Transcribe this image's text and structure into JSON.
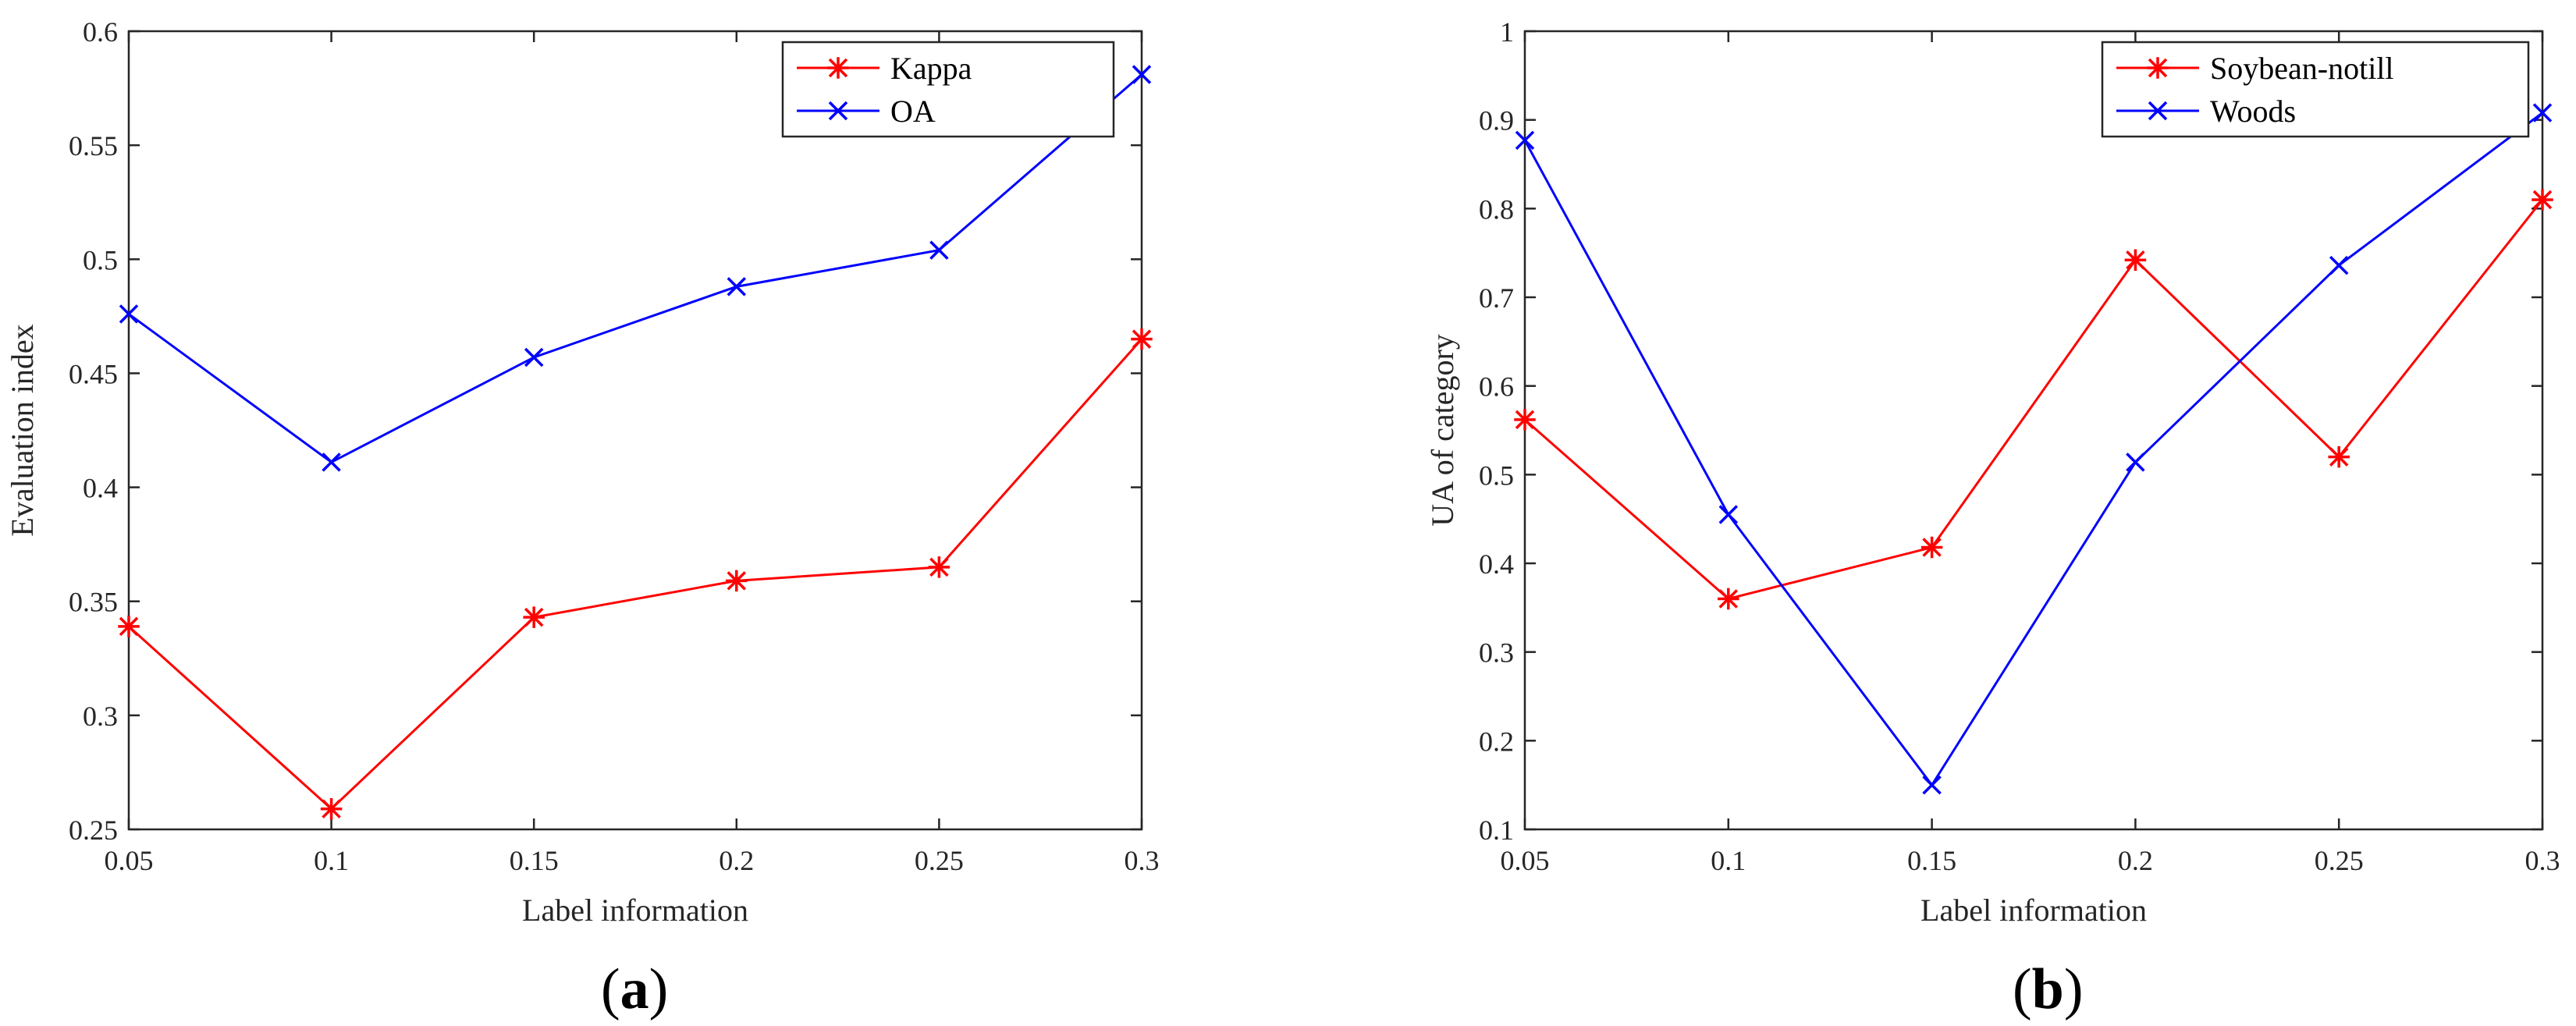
{
  "chart_data": [
    {
      "type": "line",
      "panel_label": "(a)",
      "panel_letter": "a",
      "xlabel": "Label information",
      "ylabel": "Evaluation index",
      "x": [
        0.05,
        0.1,
        0.15,
        0.2,
        0.25,
        0.3
      ],
      "x_tick_labels": [
        "0.05",
        "0.1",
        "0.15",
        "0.2",
        "0.25",
        "0.3"
      ],
      "xlim": [
        0.05,
        0.3
      ],
      "ylim": [
        0.25,
        0.6
      ],
      "y_ticks": [
        0.25,
        0.3,
        0.35,
        0.4,
        0.45,
        0.5,
        0.55,
        0.6
      ],
      "y_tick_labels": [
        "0.25",
        "0.3",
        "0.35",
        "0.4",
        "0.45",
        "0.5",
        "0.55",
        "0.6"
      ],
      "legend_position": "top-right",
      "series": [
        {
          "name": "Kappa",
          "color": "#ff0000",
          "marker": "asterisk",
          "values": [
            0.339,
            0.259,
            0.343,
            0.359,
            0.365,
            0.465
          ]
        },
        {
          "name": "OA",
          "color": "#0000ff",
          "marker": "x",
          "values": [
            0.476,
            0.411,
            0.457,
            0.488,
            0.504,
            0.581
          ]
        }
      ]
    },
    {
      "type": "line",
      "panel_label": "(b)",
      "panel_letter": "b",
      "xlabel": "Label information",
      "ylabel": "UA of category",
      "x": [
        0.05,
        0.1,
        0.15,
        0.2,
        0.25,
        0.3
      ],
      "x_tick_labels": [
        "0.05",
        "0.1",
        "0.15",
        "0.2",
        "0.25",
        "0.3"
      ],
      "xlim": [
        0.05,
        0.3
      ],
      "ylim": [
        0.1,
        1.0
      ],
      "y_ticks": [
        0.1,
        0.2,
        0.3,
        0.4,
        0.5,
        0.6,
        0.7,
        0.8,
        0.9,
        1.0
      ],
      "y_tick_labels": [
        "0.1",
        "0.2",
        "0.3",
        "0.4",
        "0.5",
        "0.6",
        "0.7",
        "0.8",
        "0.9",
        "1"
      ],
      "legend_position": "top-right",
      "series": [
        {
          "name": "Soybean-notill",
          "color": "#ff0000",
          "marker": "asterisk",
          "values": [
            0.562,
            0.36,
            0.418,
            0.742,
            0.52,
            0.81
          ]
        },
        {
          "name": "Woods",
          "color": "#0000ff",
          "marker": "x",
          "values": [
            0.877,
            0.455,
            0.15,
            0.514,
            0.736,
            0.908
          ]
        }
      ]
    }
  ]
}
